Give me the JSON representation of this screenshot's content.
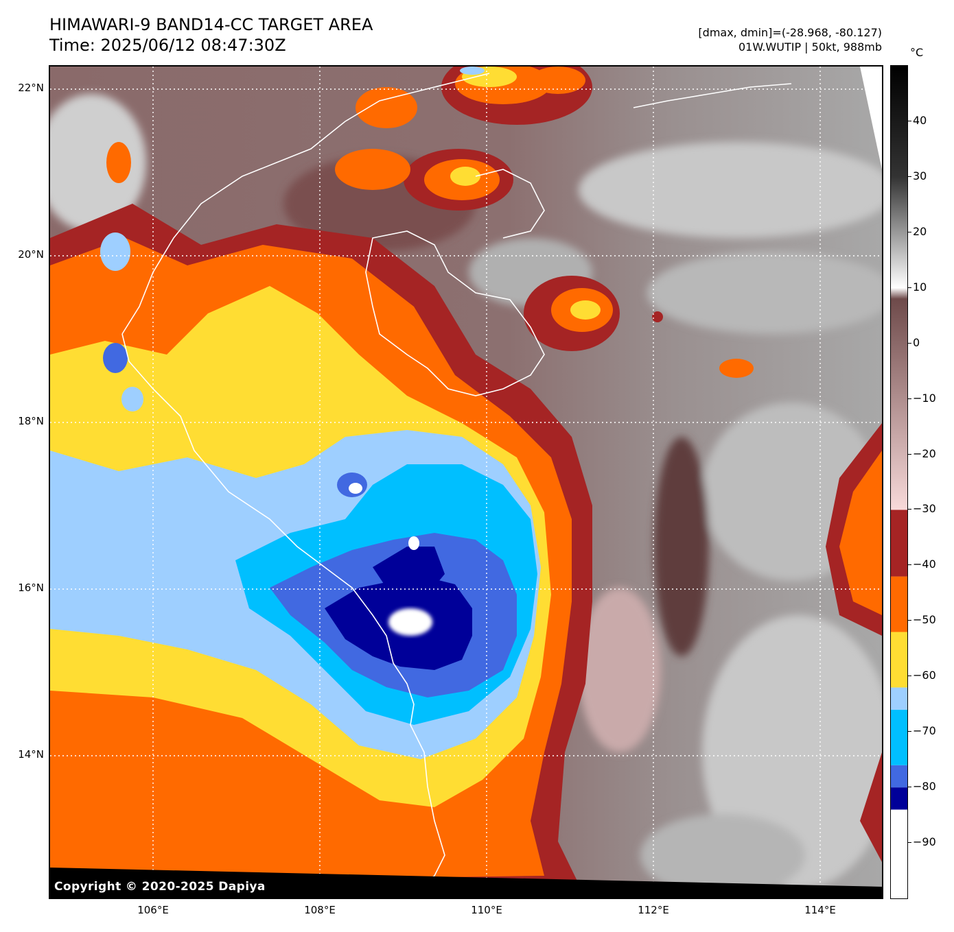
{
  "header": {
    "title_line1": "HIMAWARI-9 BAND14-CC TARGET AREA",
    "title_line2": "Time: 2025/06/12 08:47:30Z",
    "info_line1": "[dmax, dmin]=(-28.968, -80.127)",
    "info_line2": "01W.WUTIP | 50kt, 988mb"
  },
  "map": {
    "copyright": "Copyright © 2020-2025 Dapiya",
    "lat_labels": [
      "22°N",
      "20°N",
      "18°N",
      "16°N",
      "14°N"
    ],
    "lon_labels": [
      "106°E",
      "108°E",
      "110°E",
      "112°E",
      "114°E"
    ],
    "lat_values": [
      22,
      20,
      18,
      16,
      14
    ],
    "lon_values": [
      106,
      108,
      110,
      112,
      114
    ],
    "lat_range": [
      12.3,
      22.3
    ],
    "lon_range": [
      104.8,
      114.8
    ],
    "gridlines": "dotted white",
    "coastline_color": "#ffffff"
  },
  "colorbar": {
    "unit": "°C",
    "range": [
      -100,
      50
    ],
    "tick_labels": [
      "40",
      "30",
      "20",
      "10",
      "0",
      "−10",
      "−20",
      "−30",
      "−40",
      "−50",
      "−60",
      "−70",
      "−80",
      "−90"
    ],
    "tick_values": [
      40,
      30,
      20,
      10,
      0,
      -10,
      -20,
      -30,
      -40,
      -50,
      -60,
      -70,
      -80,
      -90
    ],
    "bins": [
      {
        "from": -100,
        "to": -84,
        "color": "#ffffff"
      },
      {
        "from": -84,
        "to": -80,
        "color": "#000099"
      },
      {
        "from": -80,
        "to": -76,
        "color": "#4169e1"
      },
      {
        "from": -76,
        "to": -66,
        "color": "#00bfff"
      },
      {
        "from": -66,
        "to": -62,
        "color": "#9ecfff"
      },
      {
        "from": -62,
        "to": -52,
        "color": "#ffdd33"
      },
      {
        "from": -52,
        "to": -42,
        "color": "#ff6a00"
      },
      {
        "from": -42,
        "to": -30,
        "color": "#a52424"
      }
    ],
    "gradient_stops": [
      {
        "value": -30,
        "color": "#f8dada"
      },
      {
        "value": 8,
        "color": "#6e4a4a"
      },
      {
        "value": 10,
        "color": "#ffffff"
      },
      {
        "value": 30,
        "color": "#333333"
      },
      {
        "value": 50,
        "color": "#000000"
      }
    ]
  }
}
